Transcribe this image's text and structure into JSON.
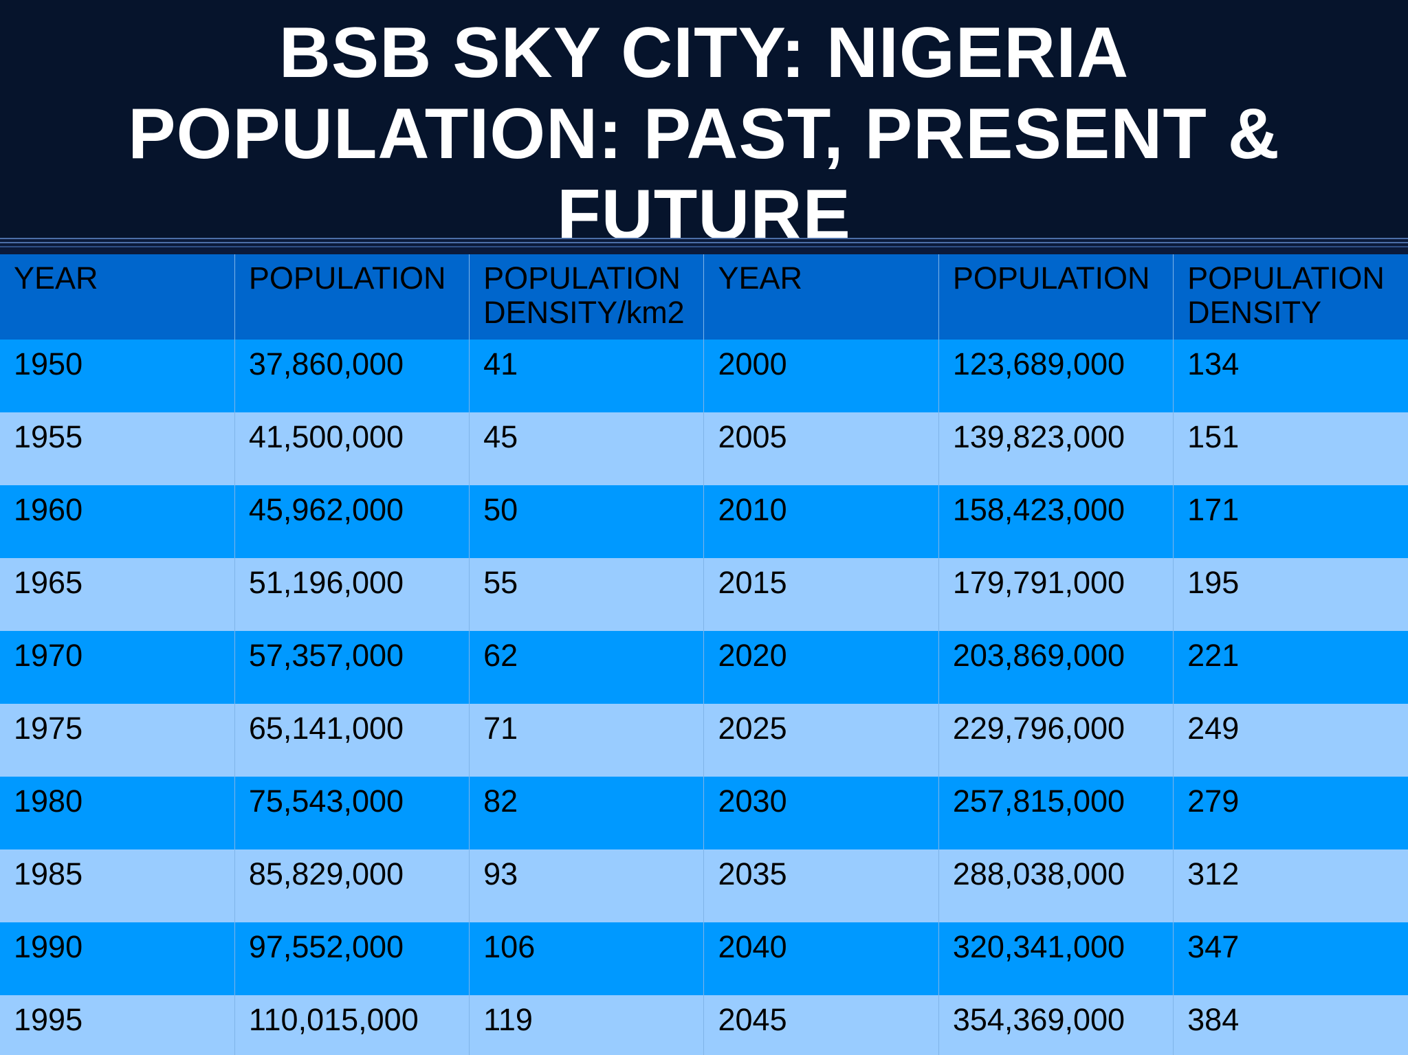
{
  "title": "BSB SKY CITY: NIGERIA POPULATION: PAST, PRESENT & FUTURE",
  "headers": [
    "YEAR",
    "POPULATION",
    "POPULATION DENSITY/km2",
    "YEAR",
    "POPULATION",
    "POPULATION DENSITY"
  ],
  "rows": [
    [
      "1950",
      "37,860,000",
      "41",
      "2000",
      "123,689,000",
      "134"
    ],
    [
      "1955",
      "41,500,000",
      "45",
      "2005",
      "139,823,000",
      "151"
    ],
    [
      "1960",
      "45,962,000",
      "50",
      "2010",
      "158,423,000",
      "171"
    ],
    [
      "1965",
      "51,196,000",
      "55",
      "2015",
      "179,791,000",
      "195"
    ],
    [
      "1970",
      "57,357,000",
      "62",
      "2020",
      "203,869,000",
      "221"
    ],
    [
      "1975",
      "65,141,000",
      "71",
      "2025",
      "229,796,000",
      "249"
    ],
    [
      "1980",
      "75,543,000",
      "82",
      "2030",
      "257,815,000",
      "279"
    ],
    [
      "1985",
      "85,829,000",
      "93",
      "2035",
      "288,038,000",
      "312"
    ],
    [
      "1990",
      "97,552,000",
      "106",
      "2040",
      "320,341,000",
      "347"
    ],
    [
      "1995",
      "110,015,000",
      "119",
      "2045",
      "354,369,000",
      "384"
    ]
  ],
  "colors": {
    "title_bar": "#06142c",
    "header_row": "#0066cc",
    "row_dark": "#0099ff",
    "row_light": "#99ccff"
  }
}
